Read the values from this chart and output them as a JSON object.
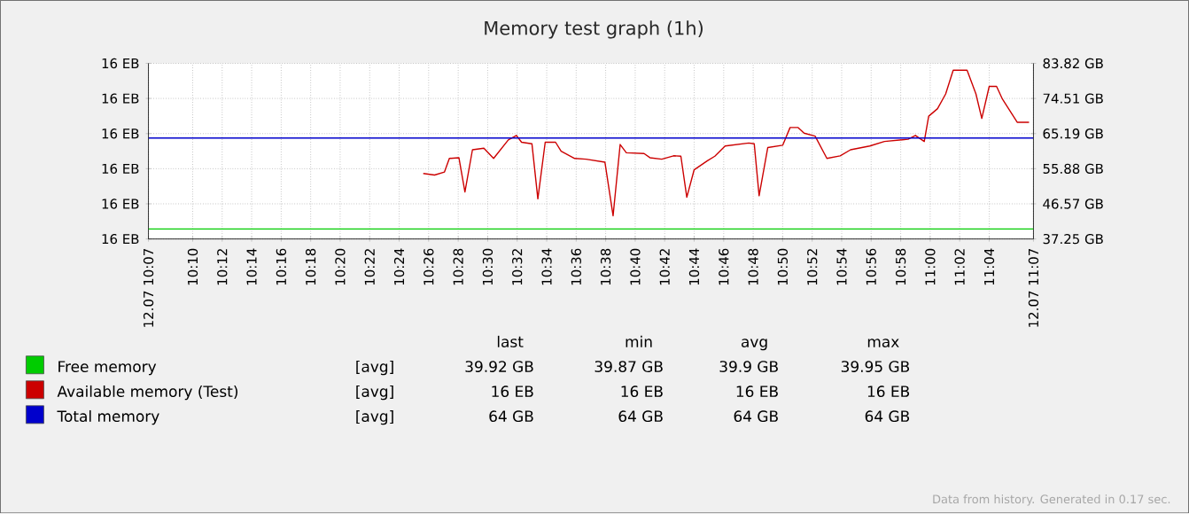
{
  "chart_data": {
    "type": "line",
    "title": "Memory test graph (1h)",
    "xlim": [
      10.1167,
      11.1167
    ],
    "xticks": [
      {
        "value": 10.1167,
        "label": "12.07 10:07"
      },
      {
        "value": 10.1667,
        "label": "10:10"
      },
      {
        "value": 10.2,
        "label": "10:12"
      },
      {
        "value": 10.2333,
        "label": "10:14"
      },
      {
        "value": 10.2667,
        "label": "10:16"
      },
      {
        "value": 10.3,
        "label": "10:18"
      },
      {
        "value": 10.3333,
        "label": "10:20"
      },
      {
        "value": 10.3667,
        "label": "10:22"
      },
      {
        "value": 10.4,
        "label": "10:24"
      },
      {
        "value": 10.4333,
        "label": "10:26"
      },
      {
        "value": 10.4667,
        "label": "10:28"
      },
      {
        "value": 10.5,
        "label": "10:30"
      },
      {
        "value": 10.5333,
        "label": "10:32"
      },
      {
        "value": 10.5667,
        "label": "10:34"
      },
      {
        "value": 10.6,
        "label": "10:36"
      },
      {
        "value": 10.6333,
        "label": "10:38"
      },
      {
        "value": 10.6667,
        "label": "10:40"
      },
      {
        "value": 10.7,
        "label": "10:42"
      },
      {
        "value": 10.7333,
        "label": "10:44"
      },
      {
        "value": 10.7667,
        "label": "10:46"
      },
      {
        "value": 10.8,
        "label": "10:48"
      },
      {
        "value": 10.8333,
        "label": "10:50"
      },
      {
        "value": 10.8667,
        "label": "10:52"
      },
      {
        "value": 10.9,
        "label": "10:54"
      },
      {
        "value": 10.9333,
        "label": "10:56"
      },
      {
        "value": 10.9667,
        "label": "10:58"
      },
      {
        "value": 11.0,
        "label": "11:00"
      },
      {
        "value": 11.0333,
        "label": "11:02"
      },
      {
        "value": 11.0667,
        "label": "11:04"
      },
      {
        "value": 11.1167,
        "label": "12.07 11:07"
      }
    ],
    "ylim": [
      37.25,
      83.82
    ],
    "yticks": [
      {
        "value": 37.25,
        "label": "37.25 GB"
      },
      {
        "value": 46.57,
        "label": "46.57 GB"
      },
      {
        "value": 55.88,
        "label": "55.88 GB"
      },
      {
        "value": 65.19,
        "label": "65.19 GB"
      },
      {
        "value": 74.51,
        "label": "74.51 GB"
      },
      {
        "value": 83.82,
        "label": "83.82 GB"
      }
    ],
    "grid": true,
    "legend": "bottom",
    "series": [
      {
        "name": "Free memory",
        "color": "#00cc00",
        "x": [
          10.1167,
          11.1167
        ],
        "values": [
          39.9,
          39.9
        ]
      },
      {
        "name": "Available memory (Test)",
        "color": "#cc0000",
        "x": [
          10.4272,
          10.44,
          10.4512,
          10.4567,
          10.4675,
          10.4743,
          10.4828,
          10.4957,
          10.5067,
          10.5233,
          10.5325,
          10.5383,
          10.55,
          10.5567,
          10.565,
          10.5767,
          10.583,
          10.5983,
          10.6112,
          10.6325,
          10.6417,
          10.6497,
          10.6567,
          10.6767,
          10.6833,
          10.6967,
          10.71,
          10.7183,
          10.725,
          10.7333,
          10.7483,
          10.7567,
          10.7683,
          10.795,
          10.8012,
          10.8067,
          10.8165,
          10.8333,
          10.8417,
          10.8508,
          10.8575,
          10.87,
          10.8833,
          10.8983,
          10.91,
          10.9317,
          10.9483,
          10.975,
          10.9833,
          10.9933,
          10.9983,
          11.0083,
          11.0175,
          11.026,
          11.0417,
          11.0517,
          11.0583,
          11.0667,
          11.075,
          11.0817,
          11.0983,
          11.1117
        ],
        "values": [
          54.6,
          54.2,
          55.0,
          58.6,
          58.8,
          49.7,
          60.9,
          61.3,
          58.6,
          63.5,
          64.7,
          62.9,
          62.5,
          47.9,
          62.9,
          62.9,
          60.5,
          58.6,
          58.4,
          57.6,
          43.4,
          62.3,
          60.1,
          59.9,
          58.8,
          58.4,
          59.3,
          59.2,
          48.3,
          55.6,
          58.0,
          59.2,
          61.9,
          62.7,
          62.5,
          48.7,
          61.5,
          62.1,
          66.8,
          66.8,
          65.3,
          64.5,
          58.6,
          59.3,
          60.9,
          61.9,
          63.1,
          63.7,
          64.7,
          63.1,
          69.8,
          71.8,
          75.7,
          82.0,
          82.0,
          75.7,
          69.2,
          77.7,
          77.7,
          74.3,
          68.2,
          68.2
        ]
      },
      {
        "name": "Total memory",
        "color": "#0000cc",
        "x": [
          10.1167,
          11.1167
        ],
        "values": [
          64,
          64
        ]
      }
    ],
    "annotations": [
      "last",
      "min",
      "avg",
      "max",
      "[avg]",
      "39.92 GB",
      "39.87 GB",
      "39.9 GB",
      "39.95 GB",
      "[avg]",
      "16 EB",
      "16 EB",
      "16 EB",
      "16 EB",
      "[avg]",
      "64 GB",
      "64 GB",
      "64 GB",
      "64 GB",
      "Data from history. Generated in 0.17 sec.",
      "16 EB",
      "16 EB",
      "16 EB",
      "16 EB",
      "16 EB",
      "16 EB"
    ]
  }
}
